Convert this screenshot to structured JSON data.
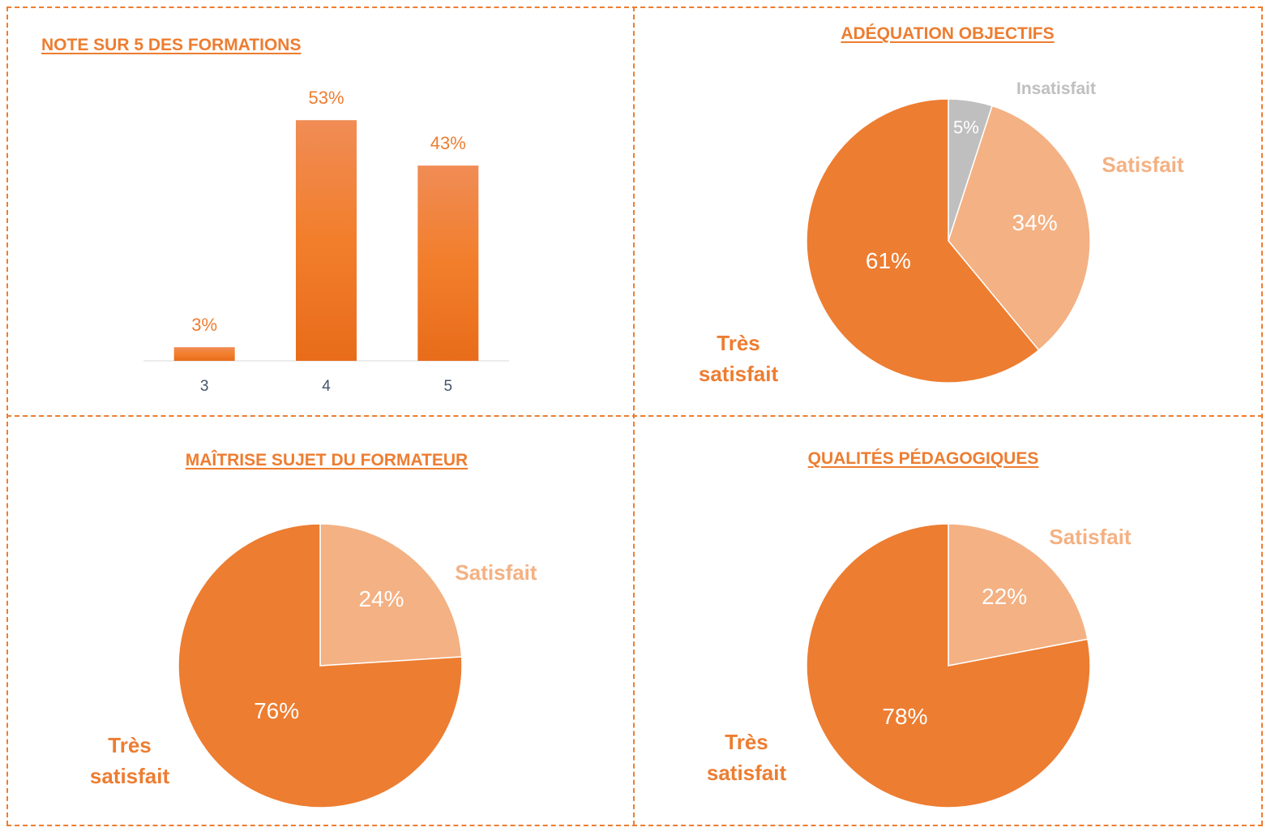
{
  "colors": {
    "accent": "#ED7D31",
    "light": "#F4B183",
    "grey": "#BFBFBF",
    "bar_top": "#F08C55",
    "bar_mid": "#F27E2B",
    "bar_bottom": "#E86C1A"
  },
  "chart_data": [
    {
      "type": "bar",
      "title": "NOTE SUR 5 DES FORMATIONS",
      "categories": [
        "3",
        "4",
        "5"
      ],
      "values": [
        3,
        53,
        43
      ],
      "value_labels": [
        "3%",
        "53%",
        "43%"
      ],
      "ylim": [
        0,
        60
      ],
      "grid": false
    },
    {
      "type": "pie",
      "title": "ADÉQUATION OBJECTIFS",
      "slices": [
        {
          "label": "Insatisfait",
          "value": 5,
          "value_label": "5%"
        },
        {
          "label": "Satisfait",
          "value": 34,
          "value_label": "34%"
        },
        {
          "label": "Très satisfait",
          "value": 61,
          "value_label": "61%"
        }
      ]
    },
    {
      "type": "pie",
      "title": "MAÎTRISE SUJET DU FORMATEUR",
      "slices": [
        {
          "label": "Satisfait",
          "value": 24,
          "value_label": "24%"
        },
        {
          "label": "Très satisfait",
          "value": 76,
          "value_label": "76%"
        }
      ]
    },
    {
      "type": "pie",
      "title": "QUALITÉS PÉDAGOGIQUES",
      "slices": [
        {
          "label": "Satisfait",
          "value": 22,
          "value_label": "22%"
        },
        {
          "label": "Très satisfait",
          "value": 78,
          "value_label": "78%"
        }
      ]
    }
  ]
}
